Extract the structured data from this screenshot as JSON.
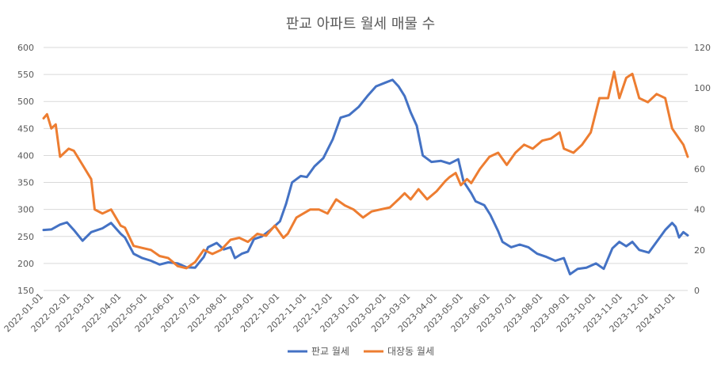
{
  "chart_data": {
    "type": "line",
    "title": "판교 아파트 월세 매물 수",
    "xlabel": "",
    "ylabel": "",
    "y_left": {
      "ylim": [
        150,
        600
      ],
      "ticks": [
        150,
        200,
        250,
        300,
        350,
        400,
        450,
        500,
        550,
        600
      ]
    },
    "y_right": {
      "ylim": [
        0,
        120
      ],
      "ticks": [
        0,
        20,
        40,
        60,
        80,
        100,
        120
      ]
    },
    "x_ticks": [
      "2022-01-01",
      "2022-02-01",
      "2022-03-01",
      "2022-04-01",
      "2022-05-01",
      "2022-06-01",
      "2022-07-01",
      "2022-08-01",
      "2022-09-01",
      "2022-10-01",
      "2022-11-01",
      "2022-12-01",
      "2023-01-01",
      "2023-02-01",
      "2023-03-01",
      "2023-04-01",
      "2023-05-01",
      "2023-06-01",
      "2023-07-01",
      "2023-08-01",
      "2023-09-01",
      "2023-10-01",
      "2023-11-01",
      "2023-12-01",
      "2024-01-01"
    ],
    "grid": true,
    "legend": "bottom",
    "series": [
      {
        "name": "판교 월세",
        "axis": "left",
        "color": "#4472c4",
        "points": [
          [
            "2022-01-01",
            262
          ],
          [
            "2022-01-10",
            263
          ],
          [
            "2022-01-20",
            272
          ],
          [
            "2022-01-28",
            276
          ],
          [
            "2022-02-05",
            262
          ],
          [
            "2022-02-15",
            242
          ],
          [
            "2022-02-25",
            258
          ],
          [
            "2022-03-10",
            265
          ],
          [
            "2022-03-20",
            275
          ],
          [
            "2022-03-31",
            255
          ],
          [
            "2022-04-05",
            248
          ],
          [
            "2022-04-15",
            218
          ],
          [
            "2022-04-25",
            210
          ],
          [
            "2022-05-05",
            205
          ],
          [
            "2022-05-15",
            198
          ],
          [
            "2022-05-25",
            202
          ],
          [
            "2022-06-05",
            200
          ],
          [
            "2022-06-15",
            193
          ],
          [
            "2022-06-25",
            192
          ],
          [
            "2022-07-05",
            212
          ],
          [
            "2022-07-10",
            230
          ],
          [
            "2022-07-20",
            238
          ],
          [
            "2022-07-28",
            226
          ],
          [
            "2022-08-05",
            230
          ],
          [
            "2022-08-10",
            210
          ],
          [
            "2022-08-18",
            218
          ],
          [
            "2022-08-25",
            222
          ],
          [
            "2022-09-01",
            245
          ],
          [
            "2022-09-10",
            250
          ],
          [
            "2022-09-20",
            262
          ],
          [
            "2022-10-01",
            278
          ],
          [
            "2022-10-08",
            310
          ],
          [
            "2022-10-15",
            350
          ],
          [
            "2022-10-25",
            362
          ],
          [
            "2022-11-01",
            360
          ],
          [
            "2022-11-10",
            380
          ],
          [
            "2022-11-20",
            395
          ],
          [
            "2022-12-01",
            430
          ],
          [
            "2022-12-10",
            470
          ],
          [
            "2022-12-20",
            475
          ],
          [
            "2022-12-31",
            490
          ],
          [
            "2023-01-10",
            510
          ],
          [
            "2023-01-20",
            528
          ],
          [
            "2023-01-31",
            535
          ],
          [
            "2023-02-08",
            540
          ],
          [
            "2023-02-15",
            528
          ],
          [
            "2023-02-22",
            510
          ],
          [
            "2023-03-01",
            480
          ],
          [
            "2023-03-08",
            455
          ],
          [
            "2023-03-15",
            400
          ],
          [
            "2023-03-25",
            388
          ],
          [
            "2023-04-05",
            390
          ],
          [
            "2023-04-15",
            385
          ],
          [
            "2023-04-25",
            393
          ],
          [
            "2023-05-01",
            352
          ],
          [
            "2023-05-10",
            330
          ],
          [
            "2023-05-15",
            315
          ],
          [
            "2023-05-25",
            308
          ],
          [
            "2023-06-01",
            290
          ],
          [
            "2023-06-10",
            260
          ],
          [
            "2023-06-15",
            240
          ],
          [
            "2023-06-25",
            230
          ],
          [
            "2023-07-05",
            235
          ],
          [
            "2023-07-15",
            230
          ],
          [
            "2023-07-25",
            218
          ],
          [
            "2023-08-05",
            212
          ],
          [
            "2023-08-15",
            205
          ],
          [
            "2023-08-25",
            210
          ],
          [
            "2023-09-01",
            180
          ],
          [
            "2023-09-10",
            190
          ],
          [
            "2023-09-20",
            192
          ],
          [
            "2023-10-01",
            200
          ],
          [
            "2023-10-10",
            190
          ],
          [
            "2023-10-20",
            228
          ],
          [
            "2023-10-28",
            240
          ],
          [
            "2023-11-05",
            232
          ],
          [
            "2023-11-12",
            240
          ],
          [
            "2023-11-20",
            225
          ],
          [
            "2023-12-01",
            220
          ],
          [
            "2023-12-10",
            240
          ],
          [
            "2023-12-20",
            262
          ],
          [
            "2023-12-28",
            275
          ],
          [
            "2024-01-01",
            268
          ],
          [
            "2024-01-05",
            248
          ],
          [
            "2024-01-10",
            258
          ],
          [
            "2024-01-15",
            252
          ]
        ]
      },
      {
        "name": "대장동 월세",
        "axis": "right",
        "color": "#ed7d31",
        "points": [
          [
            "2022-01-01",
            85
          ],
          [
            "2022-01-05",
            87
          ],
          [
            "2022-01-10",
            80
          ],
          [
            "2022-01-15",
            82
          ],
          [
            "2022-01-20",
            66
          ],
          [
            "2022-01-30",
            70
          ],
          [
            "2022-02-05",
            69
          ],
          [
            "2022-02-15",
            62
          ],
          [
            "2022-02-25",
            55
          ],
          [
            "2022-03-01",
            40
          ],
          [
            "2022-03-10",
            38
          ],
          [
            "2022-03-20",
            40
          ],
          [
            "2022-03-31",
            32
          ],
          [
            "2022-04-05",
            31
          ],
          [
            "2022-04-15",
            22
          ],
          [
            "2022-04-25",
            21
          ],
          [
            "2022-05-05",
            20
          ],
          [
            "2022-05-15",
            17
          ],
          [
            "2022-05-25",
            16
          ],
          [
            "2022-06-05",
            12
          ],
          [
            "2022-06-15",
            11
          ],
          [
            "2022-06-25",
            14
          ],
          [
            "2022-07-05",
            20
          ],
          [
            "2022-07-15",
            18
          ],
          [
            "2022-07-25",
            20
          ],
          [
            "2022-08-05",
            25
          ],
          [
            "2022-08-15",
            26
          ],
          [
            "2022-08-25",
            24
          ],
          [
            "2022-09-05",
            28
          ],
          [
            "2022-09-15",
            27
          ],
          [
            "2022-09-25",
            32
          ],
          [
            "2022-10-05",
            26
          ],
          [
            "2022-10-10",
            28
          ],
          [
            "2022-10-20",
            36
          ],
          [
            "2022-10-28",
            38
          ],
          [
            "2022-11-05",
            40
          ],
          [
            "2022-11-15",
            40
          ],
          [
            "2022-11-25",
            38
          ],
          [
            "2022-12-05",
            45
          ],
          [
            "2022-12-15",
            42
          ],
          [
            "2022-12-25",
            40
          ],
          [
            "2023-01-05",
            36
          ],
          [
            "2023-01-15",
            39
          ],
          [
            "2023-01-25",
            40
          ],
          [
            "2023-02-05",
            41
          ],
          [
            "2023-02-15",
            45
          ],
          [
            "2023-02-22",
            48
          ],
          [
            "2023-03-01",
            45
          ],
          [
            "2023-03-10",
            50
          ],
          [
            "2023-03-20",
            45
          ],
          [
            "2023-03-31",
            49
          ],
          [
            "2023-04-10",
            54
          ],
          [
            "2023-04-15",
            56
          ],
          [
            "2023-04-22",
            58
          ],
          [
            "2023-04-28",
            52
          ],
          [
            "2023-05-05",
            55
          ],
          [
            "2023-05-10",
            53
          ],
          [
            "2023-05-20",
            60
          ],
          [
            "2023-05-31",
            66
          ],
          [
            "2023-06-10",
            68
          ],
          [
            "2023-06-20",
            62
          ],
          [
            "2023-06-30",
            68
          ],
          [
            "2023-07-10",
            72
          ],
          [
            "2023-07-20",
            70
          ],
          [
            "2023-07-31",
            74
          ],
          [
            "2023-08-10",
            75
          ],
          [
            "2023-08-20",
            78
          ],
          [
            "2023-08-25",
            70
          ],
          [
            "2023-09-05",
            68
          ],
          [
            "2023-09-15",
            72
          ],
          [
            "2023-09-25",
            78
          ],
          [
            "2023-10-05",
            95
          ],
          [
            "2023-10-15",
            95
          ],
          [
            "2023-10-22",
            108
          ],
          [
            "2023-10-28",
            95
          ],
          [
            "2023-11-05",
            105
          ],
          [
            "2023-11-12",
            107
          ],
          [
            "2023-11-20",
            95
          ],
          [
            "2023-11-30",
            93
          ],
          [
            "2023-12-10",
            97
          ],
          [
            "2023-12-20",
            95
          ],
          [
            "2023-12-28",
            80
          ],
          [
            "2024-01-05",
            75
          ],
          [
            "2024-01-10",
            72
          ],
          [
            "2024-01-15",
            66
          ]
        ]
      }
    ]
  }
}
